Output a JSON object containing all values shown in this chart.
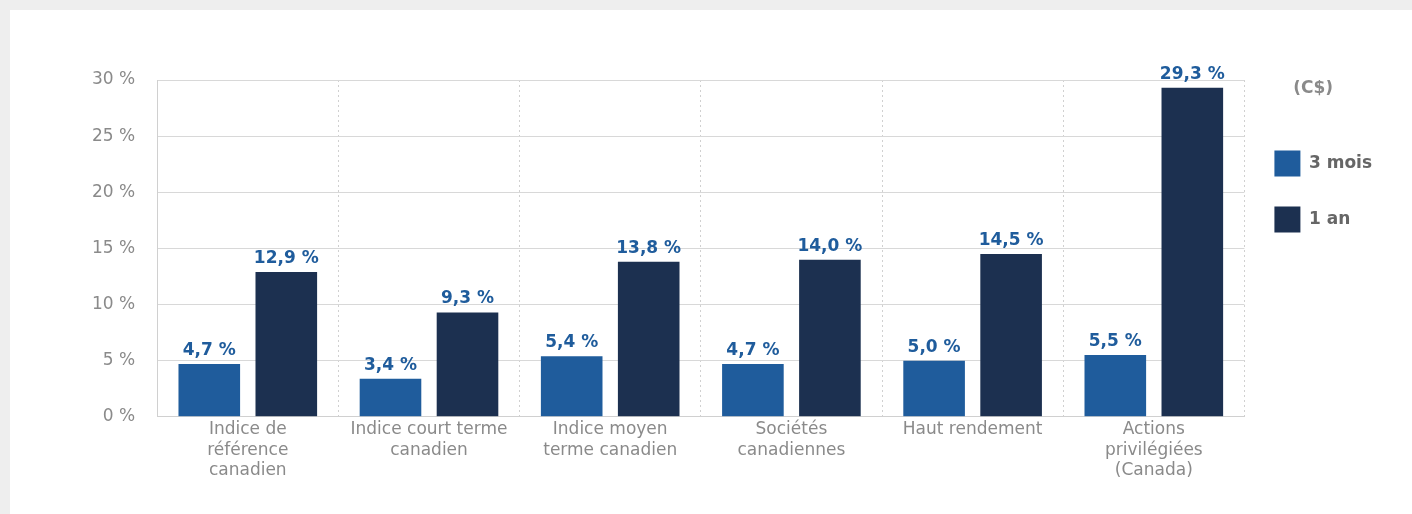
{
  "chart_data": {
    "type": "bar",
    "legend_title": "(C$)",
    "categories": [
      "Indice de référence canadien",
      "Indice court terme canadien",
      "Indice moyen terme canadien",
      "Sociétés canadiennes",
      "Haut rendement",
      "Actions privilégiées (Canada)"
    ],
    "series": [
      {
        "name": "3 mois",
        "color": "#1f5c9c",
        "values": [
          4.7,
          3.4,
          5.4,
          4.7,
          5.0,
          5.5
        ],
        "value_labels": [
          "4,7 %",
          "3,4 %",
          "5,4 %",
          "4,7 %",
          "5,0 %",
          "5,5 %"
        ]
      },
      {
        "name": "1 an",
        "color": "#1c3050",
        "values": [
          12.9,
          9.3,
          13.8,
          14.0,
          14.5,
          29.3
        ],
        "value_labels": [
          "12,9 %",
          "9,3 %",
          "13,8 %",
          "14,0 %",
          "14,5 %",
          "29,3 %"
        ]
      }
    ],
    "ylim": [
      0,
      30
    ],
    "yticks": [
      {
        "value": 0,
        "label": "0 %"
      },
      {
        "value": 5,
        "label": "5 %"
      },
      {
        "value": 10,
        "label": "10 %"
      },
      {
        "value": 15,
        "label": "15 %"
      },
      {
        "value": 20,
        "label": "20 %"
      },
      {
        "value": 25,
        "label": "25 %"
      },
      {
        "value": 30,
        "label": "30 %"
      }
    ],
    "grid": true,
    "legend": "top right"
  }
}
